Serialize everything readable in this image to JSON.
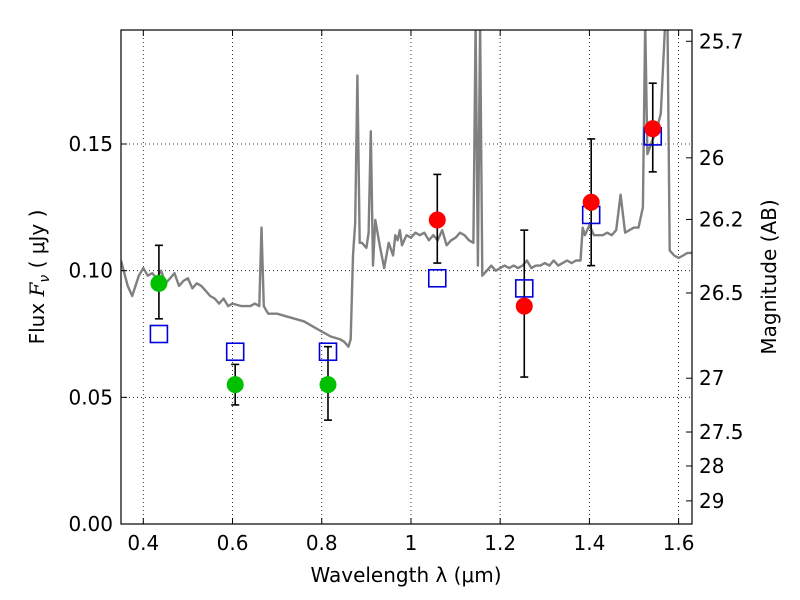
{
  "chart_data": {
    "type": "scatter",
    "title": "",
    "xlabel": "Wavelength  λ (μm)",
    "ylabel_left": "Flux  F_ν  ( μJy )",
    "ylabel_left_text": "Flux",
    "ylabel_left_symbol": "F",
    "ylabel_left_subscript": "ν",
    "ylabel_left_unit": "( μJy )",
    "ylabel_right": "Magnitude (AB)",
    "xlim": [
      0.35,
      1.63
    ],
    "ylim": [
      0.0,
      0.195
    ],
    "grid": true,
    "x_ticks": [
      0.4,
      0.6,
      0.8,
      1.0,
      1.2,
      1.4,
      1.6
    ],
    "x_tick_labels": [
      "0.4",
      "0.6",
      "0.8",
      "1",
      "1.2",
      "1.4",
      "1.6"
    ],
    "y_ticks": [
      0.0,
      0.05,
      0.1,
      0.15
    ],
    "y_tick_labels": [
      "0.00",
      "0.05",
      "0.10",
      "0.15"
    ],
    "right_ticks": [
      {
        "label": "25.7",
        "mag": 25.7
      },
      {
        "label": "26",
        "mag": 26.0
      },
      {
        "label": "26.2",
        "mag": 26.2
      },
      {
        "label": "26.5",
        "mag": 26.5
      },
      {
        "label": "27",
        "mag": 27.0
      },
      {
        "label": "27.5",
        "mag": 27.5
      },
      {
        "label": "28",
        "mag": 28.0
      },
      {
        "label": "29",
        "mag": 29.0
      }
    ],
    "colors": {
      "model_line": "#808080",
      "observed_green": "#00c000",
      "observed_red": "#ff0000",
      "model_photometry": "#0000dd",
      "grid": "#000000"
    },
    "series": [
      {
        "name": "Model spectrum",
        "kind": "line",
        "x": [
          0.35,
          0.365,
          0.375,
          0.39,
          0.4,
          0.41,
          0.42,
          0.43,
          0.44,
          0.45,
          0.46,
          0.47,
          0.48,
          0.49,
          0.5,
          0.51,
          0.52,
          0.53,
          0.54,
          0.55,
          0.56,
          0.57,
          0.58,
          0.59,
          0.6,
          0.62,
          0.64,
          0.65,
          0.66,
          0.665,
          0.67,
          0.68,
          0.7,
          0.72,
          0.74,
          0.76,
          0.78,
          0.8,
          0.82,
          0.84,
          0.85,
          0.86,
          0.865,
          0.87,
          0.875,
          0.88,
          0.885,
          0.89,
          0.9,
          0.905,
          0.91,
          0.915,
          0.92,
          0.93,
          0.94,
          0.95,
          0.96,
          0.965,
          0.97,
          0.975,
          0.98,
          0.99,
          1.0,
          1.01,
          1.02,
          1.03,
          1.04,
          1.05,
          1.06,
          1.07,
          1.08,
          1.09,
          1.1,
          1.11,
          1.12,
          1.13,
          1.14,
          1.145,
          1.15,
          1.155,
          1.16,
          1.17,
          1.18,
          1.19,
          1.2,
          1.21,
          1.22,
          1.23,
          1.24,
          1.25,
          1.26,
          1.27,
          1.28,
          1.29,
          1.3,
          1.31,
          1.32,
          1.33,
          1.34,
          1.35,
          1.36,
          1.37,
          1.38,
          1.385,
          1.39,
          1.4,
          1.41,
          1.42,
          1.43,
          1.44,
          1.45,
          1.46,
          1.47,
          1.48,
          1.49,
          1.5,
          1.51,
          1.52,
          1.525,
          1.53,
          1.54,
          1.55,
          1.56,
          1.57,
          1.575,
          1.58,
          1.59,
          1.6,
          1.61,
          1.62,
          1.63
        ],
        "y": [
          0.104,
          0.094,
          0.09,
          0.098,
          0.101,
          0.098,
          0.099,
          0.097,
          0.1,
          0.095,
          0.097,
          0.099,
          0.094,
          0.096,
          0.097,
          0.093,
          0.095,
          0.094,
          0.092,
          0.09,
          0.089,
          0.087,
          0.089,
          0.086,
          0.087,
          0.086,
          0.086,
          0.087,
          0.086,
          0.117,
          0.086,
          0.083,
          0.083,
          0.082,
          0.081,
          0.08,
          0.078,
          0.076,
          0.074,
          0.073,
          0.072,
          0.07,
          0.073,
          0.106,
          0.119,
          0.177,
          0.111,
          0.111,
          0.109,
          0.115,
          0.155,
          0.102,
          0.12,
          0.11,
          0.101,
          0.111,
          0.106,
          0.114,
          0.112,
          0.116,
          0.11,
          0.114,
          0.113,
          0.115,
          0.114,
          0.115,
          0.112,
          0.114,
          0.112,
          0.116,
          0.11,
          0.112,
          0.113,
          0.115,
          0.114,
          0.112,
          0.111,
          0.198,
          0.102,
          0.198,
          0.098,
          0.1,
          0.102,
          0.1,
          0.101,
          0.102,
          0.101,
          0.102,
          0.101,
          0.102,
          0.104,
          0.101,
          0.102,
          0.102,
          0.103,
          0.102,
          0.104,
          0.102,
          0.103,
          0.104,
          0.103,
          0.104,
          0.104,
          0.117,
          0.114,
          0.118,
          0.114,
          0.114,
          0.114,
          0.115,
          0.114,
          0.116,
          0.13,
          0.115,
          0.116,
          0.117,
          0.117,
          0.125,
          0.198,
          0.146,
          0.151,
          0.155,
          0.162,
          0.198,
          0.198,
          0.108,
          0.106,
          0.105,
          0.106,
          0.107,
          0.107
        ]
      },
      {
        "name": "Observed flux (green)",
        "kind": "points",
        "points": [
          {
            "x": 0.435,
            "y": 0.095,
            "err_low": 0.081,
            "err_high": 0.11
          },
          {
            "x": 0.606,
            "y": 0.055,
            "err_low": 0.047,
            "err_high": 0.063
          },
          {
            "x": 0.814,
            "y": 0.055,
            "err_low": 0.041,
            "err_high": 0.07
          }
        ]
      },
      {
        "name": "Observed flux (red)",
        "kind": "points",
        "points": [
          {
            "x": 1.059,
            "y": 0.12,
            "err_low": 0.103,
            "err_high": 0.138
          },
          {
            "x": 1.254,
            "y": 0.086,
            "err_low": 0.058,
            "err_high": 0.116
          },
          {
            "x": 1.404,
            "y": 0.127,
            "err_low": 0.102,
            "err_high": 0.152
          },
          {
            "x": 1.542,
            "y": 0.156,
            "err_low": 0.139,
            "err_high": 0.174
          }
        ]
      },
      {
        "name": "Model photometry",
        "kind": "squares",
        "points": [
          {
            "x": 0.435,
            "y": 0.075
          },
          {
            "x": 0.606,
            "y": 0.068
          },
          {
            "x": 0.814,
            "y": 0.068
          },
          {
            "x": 1.059,
            "y": 0.097
          },
          {
            "x": 1.254,
            "y": 0.093
          },
          {
            "x": 1.404,
            "y": 0.122
          },
          {
            "x": 1.542,
            "y": 0.153
          }
        ]
      }
    ]
  }
}
